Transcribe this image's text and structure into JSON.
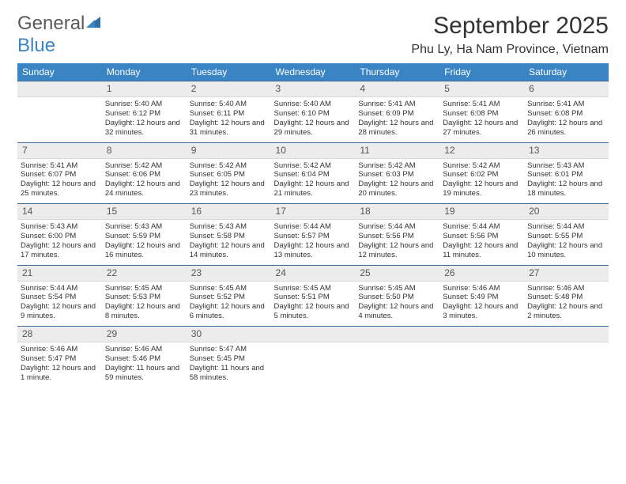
{
  "logo": {
    "part1": "General",
    "part2": "Blue",
    "color1": "#5a5a5a",
    "color2": "#3a84c4"
  },
  "title": "September 2025",
  "location": "Phu Ly, Ha Nam Province, Vietnam",
  "header_bg": "#3a84c4",
  "daynum_bg": "#ececec",
  "border_color": "#3a6a9a",
  "weekdays": [
    "Sunday",
    "Monday",
    "Tuesday",
    "Wednesday",
    "Thursday",
    "Friday",
    "Saturday"
  ],
  "weeks": [
    {
      "nums": [
        "",
        "1",
        "2",
        "3",
        "4",
        "5",
        "6"
      ],
      "cells": [
        {
          "sunrise": "",
          "sunset": "",
          "daylight": ""
        },
        {
          "sunrise": "Sunrise: 5:40 AM",
          "sunset": "Sunset: 6:12 PM",
          "daylight": "Daylight: 12 hours and 32 minutes."
        },
        {
          "sunrise": "Sunrise: 5:40 AM",
          "sunset": "Sunset: 6:11 PM",
          "daylight": "Daylight: 12 hours and 31 minutes."
        },
        {
          "sunrise": "Sunrise: 5:40 AM",
          "sunset": "Sunset: 6:10 PM",
          "daylight": "Daylight: 12 hours and 29 minutes."
        },
        {
          "sunrise": "Sunrise: 5:41 AM",
          "sunset": "Sunset: 6:09 PM",
          "daylight": "Daylight: 12 hours and 28 minutes."
        },
        {
          "sunrise": "Sunrise: 5:41 AM",
          "sunset": "Sunset: 6:08 PM",
          "daylight": "Daylight: 12 hours and 27 minutes."
        },
        {
          "sunrise": "Sunrise: 5:41 AM",
          "sunset": "Sunset: 6:08 PM",
          "daylight": "Daylight: 12 hours and 26 minutes."
        }
      ]
    },
    {
      "nums": [
        "7",
        "8",
        "9",
        "10",
        "11",
        "12",
        "13"
      ],
      "cells": [
        {
          "sunrise": "Sunrise: 5:41 AM",
          "sunset": "Sunset: 6:07 PM",
          "daylight": "Daylight: 12 hours and 25 minutes."
        },
        {
          "sunrise": "Sunrise: 5:42 AM",
          "sunset": "Sunset: 6:06 PM",
          "daylight": "Daylight: 12 hours and 24 minutes."
        },
        {
          "sunrise": "Sunrise: 5:42 AM",
          "sunset": "Sunset: 6:05 PM",
          "daylight": "Daylight: 12 hours and 23 minutes."
        },
        {
          "sunrise": "Sunrise: 5:42 AM",
          "sunset": "Sunset: 6:04 PM",
          "daylight": "Daylight: 12 hours and 21 minutes."
        },
        {
          "sunrise": "Sunrise: 5:42 AM",
          "sunset": "Sunset: 6:03 PM",
          "daylight": "Daylight: 12 hours and 20 minutes."
        },
        {
          "sunrise": "Sunrise: 5:42 AM",
          "sunset": "Sunset: 6:02 PM",
          "daylight": "Daylight: 12 hours and 19 minutes."
        },
        {
          "sunrise": "Sunrise: 5:43 AM",
          "sunset": "Sunset: 6:01 PM",
          "daylight": "Daylight: 12 hours and 18 minutes."
        }
      ]
    },
    {
      "nums": [
        "14",
        "15",
        "16",
        "17",
        "18",
        "19",
        "20"
      ],
      "cells": [
        {
          "sunrise": "Sunrise: 5:43 AM",
          "sunset": "Sunset: 6:00 PM",
          "daylight": "Daylight: 12 hours and 17 minutes."
        },
        {
          "sunrise": "Sunrise: 5:43 AM",
          "sunset": "Sunset: 5:59 PM",
          "daylight": "Daylight: 12 hours and 16 minutes."
        },
        {
          "sunrise": "Sunrise: 5:43 AM",
          "sunset": "Sunset: 5:58 PM",
          "daylight": "Daylight: 12 hours and 14 minutes."
        },
        {
          "sunrise": "Sunrise: 5:44 AM",
          "sunset": "Sunset: 5:57 PM",
          "daylight": "Daylight: 12 hours and 13 minutes."
        },
        {
          "sunrise": "Sunrise: 5:44 AM",
          "sunset": "Sunset: 5:56 PM",
          "daylight": "Daylight: 12 hours and 12 minutes."
        },
        {
          "sunrise": "Sunrise: 5:44 AM",
          "sunset": "Sunset: 5:56 PM",
          "daylight": "Daylight: 12 hours and 11 minutes."
        },
        {
          "sunrise": "Sunrise: 5:44 AM",
          "sunset": "Sunset: 5:55 PM",
          "daylight": "Daylight: 12 hours and 10 minutes."
        }
      ]
    },
    {
      "nums": [
        "21",
        "22",
        "23",
        "24",
        "25",
        "26",
        "27"
      ],
      "cells": [
        {
          "sunrise": "Sunrise: 5:44 AM",
          "sunset": "Sunset: 5:54 PM",
          "daylight": "Daylight: 12 hours and 9 minutes."
        },
        {
          "sunrise": "Sunrise: 5:45 AM",
          "sunset": "Sunset: 5:53 PM",
          "daylight": "Daylight: 12 hours and 8 minutes."
        },
        {
          "sunrise": "Sunrise: 5:45 AM",
          "sunset": "Sunset: 5:52 PM",
          "daylight": "Daylight: 12 hours and 6 minutes."
        },
        {
          "sunrise": "Sunrise: 5:45 AM",
          "sunset": "Sunset: 5:51 PM",
          "daylight": "Daylight: 12 hours and 5 minutes."
        },
        {
          "sunrise": "Sunrise: 5:45 AM",
          "sunset": "Sunset: 5:50 PM",
          "daylight": "Daylight: 12 hours and 4 minutes."
        },
        {
          "sunrise": "Sunrise: 5:46 AM",
          "sunset": "Sunset: 5:49 PM",
          "daylight": "Daylight: 12 hours and 3 minutes."
        },
        {
          "sunrise": "Sunrise: 5:46 AM",
          "sunset": "Sunset: 5:48 PM",
          "daylight": "Daylight: 12 hours and 2 minutes."
        }
      ]
    },
    {
      "nums": [
        "28",
        "29",
        "30",
        "",
        "",
        "",
        ""
      ],
      "cells": [
        {
          "sunrise": "Sunrise: 5:46 AM",
          "sunset": "Sunset: 5:47 PM",
          "daylight": "Daylight: 12 hours and 1 minute."
        },
        {
          "sunrise": "Sunrise: 5:46 AM",
          "sunset": "Sunset: 5:46 PM",
          "daylight": "Daylight: 11 hours and 59 minutes."
        },
        {
          "sunrise": "Sunrise: 5:47 AM",
          "sunset": "Sunset: 5:45 PM",
          "daylight": "Daylight: 11 hours and 58 minutes."
        },
        {
          "sunrise": "",
          "sunset": "",
          "daylight": ""
        },
        {
          "sunrise": "",
          "sunset": "",
          "daylight": ""
        },
        {
          "sunrise": "",
          "sunset": "",
          "daylight": ""
        },
        {
          "sunrise": "",
          "sunset": "",
          "daylight": ""
        }
      ]
    }
  ]
}
